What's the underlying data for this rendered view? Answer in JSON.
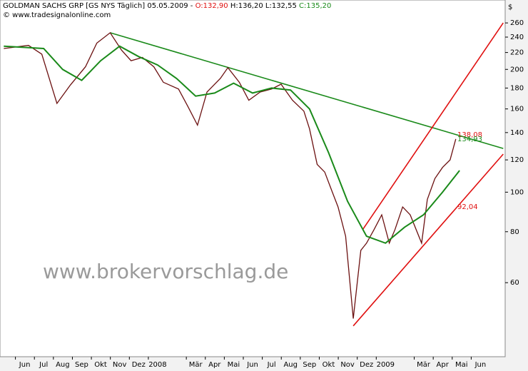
{
  "header": {
    "title": "GOLDMAN SACHS GRP [GS NYS  Täglich] 05.05.2009 -",
    "open": "O:132,90",
    "high_low": "H:136,20 L:132,55",
    "close": "C:135,20",
    "source": "© www.tradesignalonline.com"
  },
  "watermark": "www.brokervorschlag.de",
  "chart_data": {
    "type": "line",
    "y_unit": "$",
    "log_scale": true,
    "grid": false,
    "xlim": [
      -1.3,
      25.3
    ],
    "ylim": [
      39.5,
      290
    ],
    "xticks": [
      {
        "value": 0,
        "label": "Jun"
      },
      {
        "value": 1,
        "label": "Jul"
      },
      {
        "value": 2,
        "label": "Aug"
      },
      {
        "value": 3,
        "label": "Sep"
      },
      {
        "value": 4,
        "label": "Okt"
      },
      {
        "value": 5,
        "label": "Nov"
      },
      {
        "value": 6,
        "label": "Dez"
      },
      {
        "value": 7,
        "label": "2008"
      },
      {
        "value": 9,
        "label": "Mär"
      },
      {
        "value": 10,
        "label": "Apr"
      },
      {
        "value": 11,
        "label": "Mai"
      },
      {
        "value": 12,
        "label": "Jun"
      },
      {
        "value": 13,
        "label": "Jul"
      },
      {
        "value": 14,
        "label": "Aug"
      },
      {
        "value": 15,
        "label": "Sep"
      },
      {
        "value": 16,
        "label": "Okt"
      },
      {
        "value": 17,
        "label": "Nov"
      },
      {
        "value": 18,
        "label": "Dez"
      },
      {
        "value": 19,
        "label": "2009"
      },
      {
        "value": 21,
        "label": "Mär"
      },
      {
        "value": 22,
        "label": "Apr"
      },
      {
        "value": 23,
        "label": "Mai"
      },
      {
        "value": 24,
        "label": "Jun"
      }
    ],
    "yticks": [
      60,
      80,
      100,
      120,
      140,
      160,
      180,
      200,
      220,
      240,
      260
    ],
    "series": [
      {
        "color": "#6b1010",
        "width": 1.3,
        "x": [
          -1.1,
          0.2,
          0.9,
          1.7,
          2.4,
          3.2,
          3.8,
          4.5,
          5.1,
          5.6,
          6.2,
          6.8,
          7.3,
          8.1,
          8.6,
          9.1,
          9.6,
          10.3,
          10.7,
          11.3,
          11.8,
          12.4,
          13.0,
          13.5,
          14.1,
          14.7,
          15.0,
          15.4,
          15.8,
          16.2,
          16.5,
          16.9,
          17.3,
          17.7,
          18.0,
          18.4,
          18.8,
          19.2,
          19.5,
          19.9,
          20.3,
          20.9,
          21.2,
          21.6,
          22.0,
          22.4,
          22.7
        ],
        "values": [
          225,
          229,
          218,
          165,
          183,
          203,
          232,
          246,
          223,
          210,
          214,
          203,
          186,
          179,
          162,
          146,
          176,
          190,
          202,
          186,
          168,
          176,
          179,
          184,
          168,
          158,
          143,
          117,
          112,
          100,
          92,
          78,
          49,
          72,
          75,
          81,
          88,
          75,
          81,
          92,
          88,
          75,
          96,
          108,
          115,
          120,
          135
        ]
      },
      {
        "color": "#1a8a1a",
        "width": 2,
        "x": [
          -1.1,
          1,
          2,
          3,
          4,
          5,
          6,
          7,
          8,
          9,
          10,
          11,
          12,
          13,
          14,
          15,
          16,
          17,
          18,
          19,
          20,
          21,
          22,
          22.9
        ],
        "values": [
          228,
          225,
          200,
          188,
          210,
          228,
          215,
          205,
          190,
          172,
          175,
          185,
          175,
          180,
          178,
          160,
          125,
          95,
          78,
          75,
          82,
          88,
          100,
          113
        ]
      }
    ],
    "trendlines": [
      {
        "color": "#1a8a1a",
        "x": [
          4.5,
          25.2
        ],
        "values": [
          246,
          128
        ]
      },
      {
        "color": "#e01010",
        "x": [
          17.8,
          25.2
        ],
        "values": [
          81,
          260
        ]
      },
      {
        "color": "#e01010",
        "x": [
          17.3,
          25.2
        ],
        "values": [
          47,
          124
        ]
      }
    ],
    "annotations": [
      {
        "label": "138,08",
        "value": 138.08,
        "color": "#e01010"
      },
      {
        "label": "134,93",
        "value": 134.93,
        "color": "#1a8a1a"
      },
      {
        "label": "92,04",
        "value": 92.04,
        "color": "#e01010"
      }
    ]
  }
}
